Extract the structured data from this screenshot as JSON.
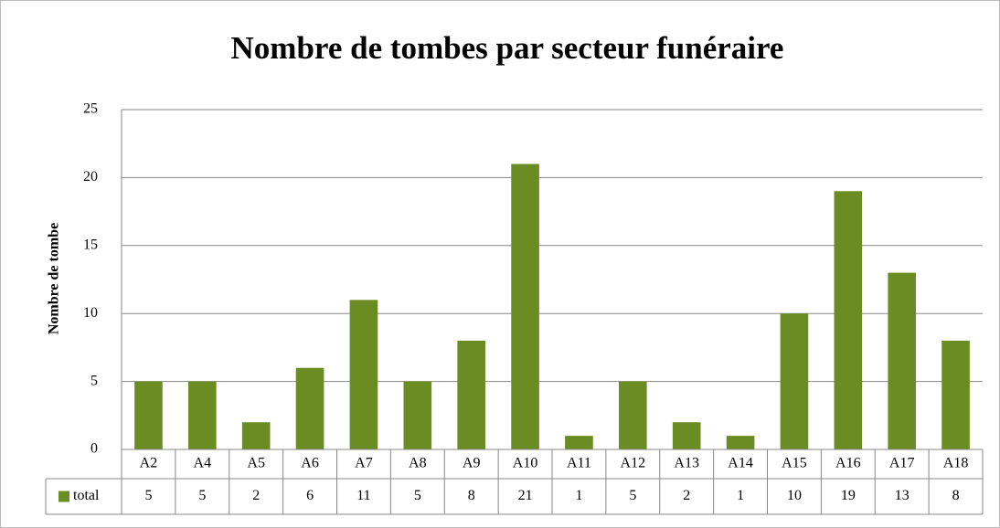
{
  "chart_data": {
    "type": "bar",
    "title": "Nombre de tombes par secteur funéraire",
    "ylabel": "Nombre de tombe",
    "categories": [
      "A2",
      "A4",
      "A5",
      "A6",
      "A7",
      "A8",
      "A9",
      "A10",
      "A11",
      "A12",
      "A13",
      "A14",
      "A15",
      "A16",
      "A17",
      "A18"
    ],
    "series": [
      {
        "name": "total",
        "color": "#6b8c23",
        "values": [
          5,
          5,
          2,
          6,
          11,
          5,
          8,
          21,
          1,
          5,
          2,
          1,
          10,
          19,
          13,
          8
        ]
      }
    ],
    "ylim": [
      0,
      25
    ],
    "yticks": [
      0,
      5,
      10,
      15,
      20,
      25
    ],
    "grid": true,
    "data_table": true
  }
}
